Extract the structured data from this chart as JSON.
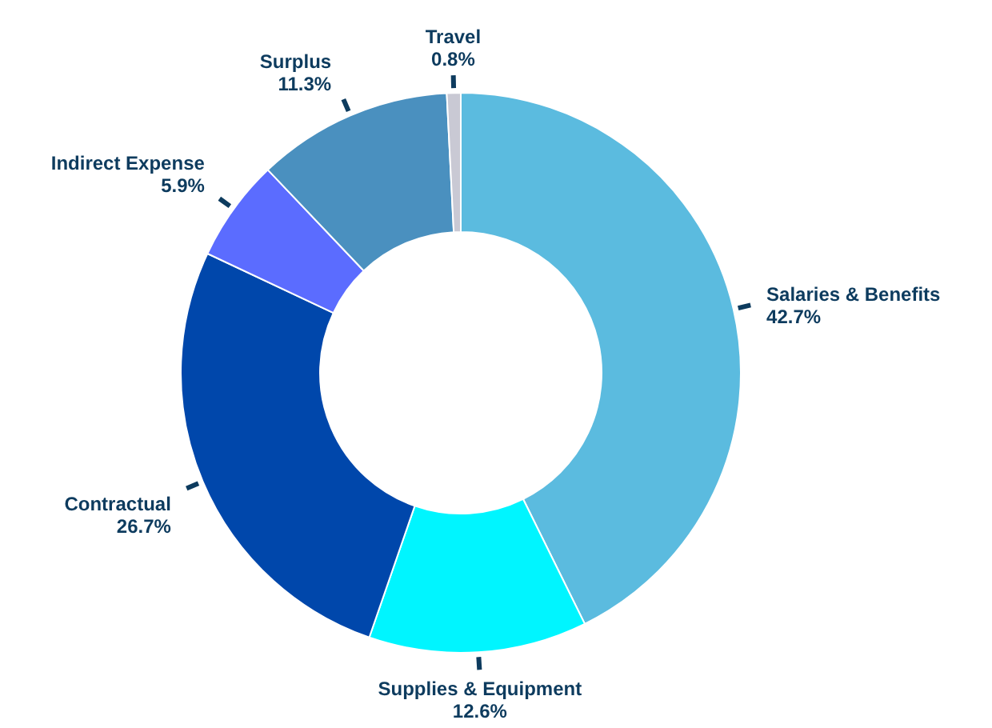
{
  "chart_data": {
    "type": "donut",
    "categories": [
      "Salaries & Benefits",
      "Supplies & Equipment",
      "Contractual",
      "Indirect Expense",
      "Surplus",
      "Travel"
    ],
    "values": [
      42.7,
      12.6,
      26.7,
      5.9,
      11.3,
      0.8
    ],
    "value_labels": [
      "42.7%",
      "12.6%",
      "26.7%",
      "5.9%",
      "11.3%",
      "0.8%"
    ],
    "colors": [
      "#5bbbdf",
      "#00f5ff",
      "#0047ab",
      "#5b6cff",
      "#4a90bf",
      "#c9c9d4"
    ]
  }
}
